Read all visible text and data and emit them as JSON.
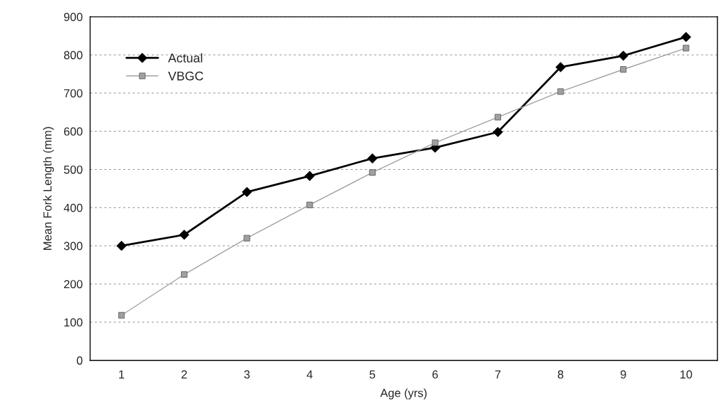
{
  "chart_data": {
    "type": "line",
    "xlabel": "Age (yrs)",
    "ylabel": "Mean Fork Length (mm)",
    "categories": [
      "1",
      "2",
      "3",
      "4",
      "5",
      "6",
      "7",
      "8",
      "9",
      "10"
    ],
    "series": [
      {
        "name": "Actual",
        "color": "#000000",
        "marker": "diamond",
        "values": [
          300,
          329,
          441,
          483,
          529,
          557,
          598,
          768,
          798,
          847
        ]
      },
      {
        "name": "VBGC",
        "color": "#a0a0a0",
        "marker": "square",
        "values": [
          118,
          225,
          320,
          407,
          492,
          570,
          637,
          704,
          762,
          818
        ]
      }
    ],
    "ylim": [
      0,
      900
    ],
    "yticks": [
      0,
      100,
      200,
      300,
      400,
      500,
      600,
      700,
      800,
      900
    ],
    "grid": "y",
    "legend": "top left"
  }
}
